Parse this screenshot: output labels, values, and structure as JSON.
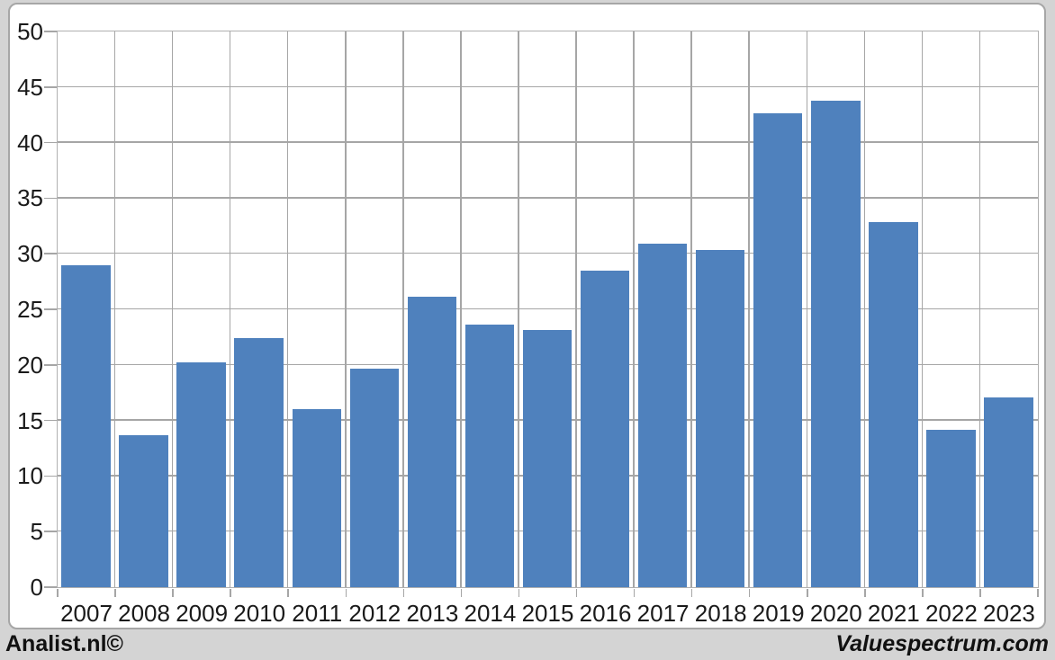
{
  "chart_data": {
    "type": "bar",
    "title": "",
    "xlabel": "",
    "ylabel": "",
    "categories": [
      "2007",
      "2008",
      "2009",
      "2010",
      "2011",
      "2012",
      "2013",
      "2014",
      "2015",
      "2016",
      "2017",
      "2018",
      "2019",
      "2020",
      "2021",
      "2022",
      "2023"
    ],
    "values": [
      28.9,
      13.6,
      20.2,
      22.4,
      16.0,
      19.6,
      26.1,
      23.6,
      23.1,
      28.4,
      30.9,
      30.3,
      42.6,
      43.7,
      32.8,
      14.1,
      17.0
    ],
    "ylim": [
      0,
      50
    ],
    "ytick_step": 5,
    "ytick_labels": [
      "0",
      "5",
      "10",
      "15",
      "20",
      "25",
      "30",
      "35",
      "40",
      "45",
      "50"
    ],
    "grid": true,
    "legend": false,
    "bar_color": "#4f81bd",
    "gap_fraction": 0.15
  },
  "colors": {
    "bar": "#4f81bd",
    "gridline": "#a6a6a6",
    "panel_border": "#a6a6a6",
    "plot_border": "#b0b0b0",
    "page_background": "#d4d4d4",
    "panel_background": "#ffffff",
    "label_text": "#1a1a1a"
  },
  "footer": {
    "left_brand": "Analist.nl©",
    "right_brand": "Valuespectrum.com"
  }
}
